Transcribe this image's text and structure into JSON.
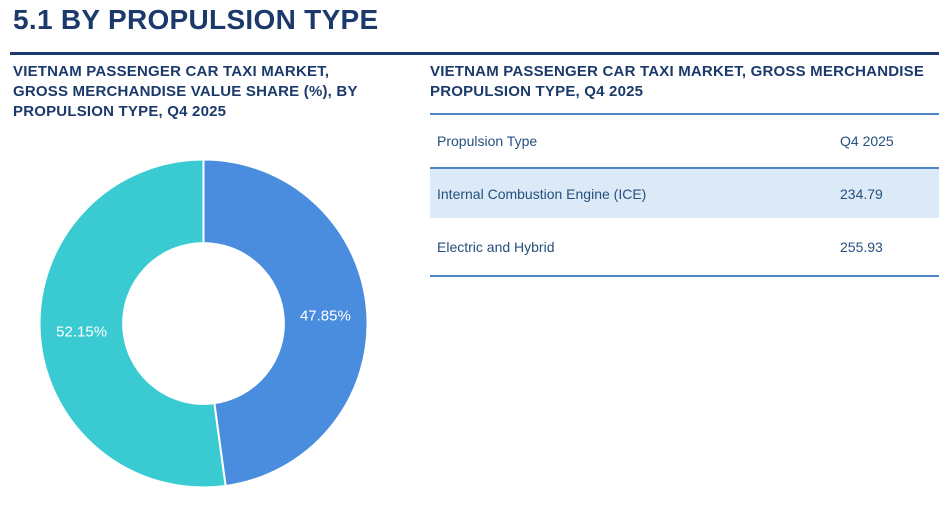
{
  "page": {
    "title": "5.1 BY PROPULSION TYPE"
  },
  "theme": {
    "navy": "#1B3A6B",
    "table_line_blue": "#4E86C5",
    "table_text_blue": "#26507E",
    "highlight_row_bg": "#DCE9F7",
    "donut_blue": "#4A8DDE",
    "donut_teal": "#3ACBD2"
  },
  "left_panel": {
    "title_lines": [
      "VIETNAM PASSENGER CAR TAXI MARKET,",
      "GROSS MERCHANDISE VALUE SHARE (%), BY",
      "PROPULSION TYPE, Q4 2025"
    ]
  },
  "right_panel": {
    "title_line1": "VIETNAM PASSENGER CAR TAXI MARKET, GROSS MERCHANDISE",
    "title_line2": "PROPULSION TYPE, Q4 2025"
  },
  "chart_data": [
    {
      "type": "pie",
      "subtype": "donut",
      "title": "VIETNAM PASSENGER CAR TAXI MARKET, GROSS MERCHANDISE VALUE SHARE (%), BY PROPULSION TYPE, Q4 2025",
      "labels": [
        "Internal Combustion Engine (ICE)",
        "Electric and Hybrid"
      ],
      "values": [
        47.85,
        52.15
      ],
      "display_labels": [
        "47.85%",
        "52.15%"
      ],
      "colors": [
        "#4A8DDE",
        "#3ACBD2"
      ],
      "start_angle_deg": 0,
      "direction": "clockwise",
      "inner_radius_ratio": 0.49,
      "label_color": "#FFFFFF",
      "legend": "none"
    },
    {
      "type": "table",
      "title": "VIETNAM PASSENGER CAR TAXI MARKET, GROSS MERCHANDISE ... PROPULSION TYPE, Q4 2025",
      "columns": [
        "Propulsion Type",
        "Q4 2025"
      ],
      "rows": [
        {
          "label": "Internal Combustion Engine (ICE)",
          "value": "234.79",
          "highlighted": true
        },
        {
          "label": "Electric and Hybrid",
          "value": "255.93",
          "highlighted": false
        }
      ]
    }
  ]
}
